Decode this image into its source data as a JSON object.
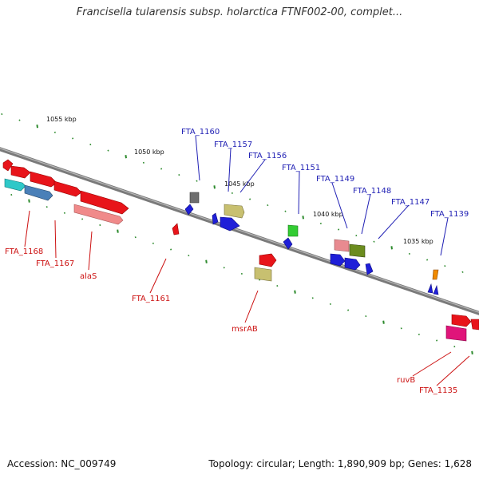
{
  "title": "Francisella tularensis subsp. holarctica FTNF002-00, complet...",
  "footer": {
    "accession": "Accession: NC_009749",
    "summary": "Topology: circular; Length: 1,890,909 bp; Genes: 1,628"
  },
  "colors": {
    "backbone": "#888888",
    "tick": "#2e8b2e",
    "forward_label": "#1f1fb4",
    "reverse_label": "#cc1111"
  },
  "scale_labels": [
    "1055 kbp",
    "1050 kbp",
    "1045 kbp",
    "1040 kbp",
    "1035 kbp"
  ],
  "forward_labels": [
    "FTA_1160",
    "FTA_1157",
    "FTA_1156",
    "FTA_1151",
    "FTA_1149",
    "FTA_1148",
    "FTA_1147",
    "FTA_1139"
  ],
  "reverse_labels": [
    "FTA_1168",
    "FTA_1167",
    "alaS",
    "FTA_1161",
    "msrAB",
    "ruvB",
    "FTA_1135"
  ],
  "feature_colors": [
    "red",
    "cyan",
    "steelblue",
    "lightcoral",
    "gray",
    "blue",
    "khaki",
    "green",
    "olive",
    "orange",
    "deeppink"
  ]
}
